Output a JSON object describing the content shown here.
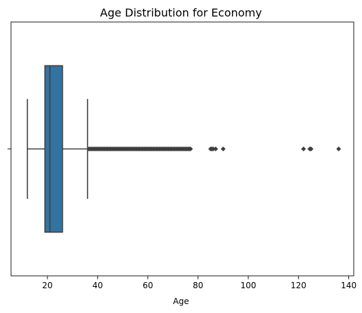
{
  "chart_data": {
    "type": "box",
    "title": "Age Distribution for Economy",
    "xlabel": "Age",
    "ylabel": "",
    "xlim": [
      5.5,
      142
    ],
    "x_ticks": [
      20,
      40,
      60,
      80,
      100,
      120,
      140
    ],
    "orientation": "horizontal",
    "box": {
      "whisker_low": 12,
      "q1": 19,
      "median": 21,
      "q3": 26,
      "whisker_high": 36
    },
    "outliers_dense_range": [
      36.5,
      77
    ],
    "outliers": [
      85,
      85.5,
      86,
      87,
      90,
      122,
      124.5,
      125,
      136
    ],
    "colors": {
      "box_fill": "#3274a1",
      "lines": "#3f3f3f"
    },
    "grid": false
  }
}
